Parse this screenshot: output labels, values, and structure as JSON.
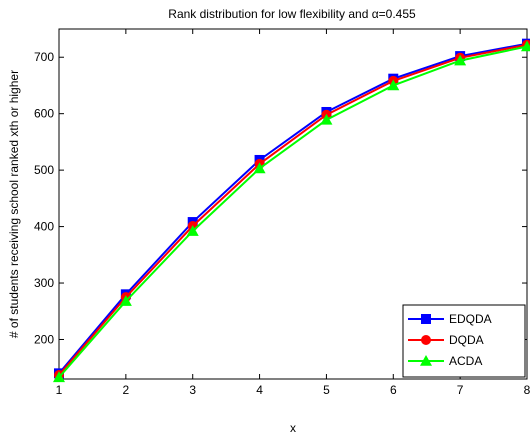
{
  "chart_data": {
    "type": "line",
    "title_prefix": "Rank distribution for low flexibility and ",
    "title_symbol": "α",
    "title_suffix": "=0.455",
    "xlabel": "x",
    "ylabel": "# of students receiving school ranked xth or higher",
    "x": [
      1,
      2,
      3,
      4,
      5,
      6,
      7,
      8
    ],
    "xlim": [
      1,
      8
    ],
    "ylim": [
      130,
      750
    ],
    "xticks": [
      "1",
      "2",
      "3",
      "4",
      "5",
      "6",
      "7",
      "8"
    ],
    "yticks": [
      200,
      300,
      400,
      500,
      600,
      700
    ],
    "grid": false,
    "legend_position": "bottom-right",
    "series": [
      {
        "name": "EDQDA",
        "color": "#0000ff",
        "marker": "square",
        "values": [
          140,
          280,
          408,
          518,
          603,
          662,
          702,
          724
        ]
      },
      {
        "name": "DQDA",
        "color": "#ff0000",
        "marker": "circle",
        "values": [
          137,
          275,
          401,
          511,
          598,
          658,
          699,
          722
        ]
      },
      {
        "name": "ACDA",
        "color": "#00ff00",
        "marker": "triangle",
        "values": [
          133,
          268,
          392,
          503,
          589,
          650,
          694,
          719
        ]
      }
    ]
  }
}
